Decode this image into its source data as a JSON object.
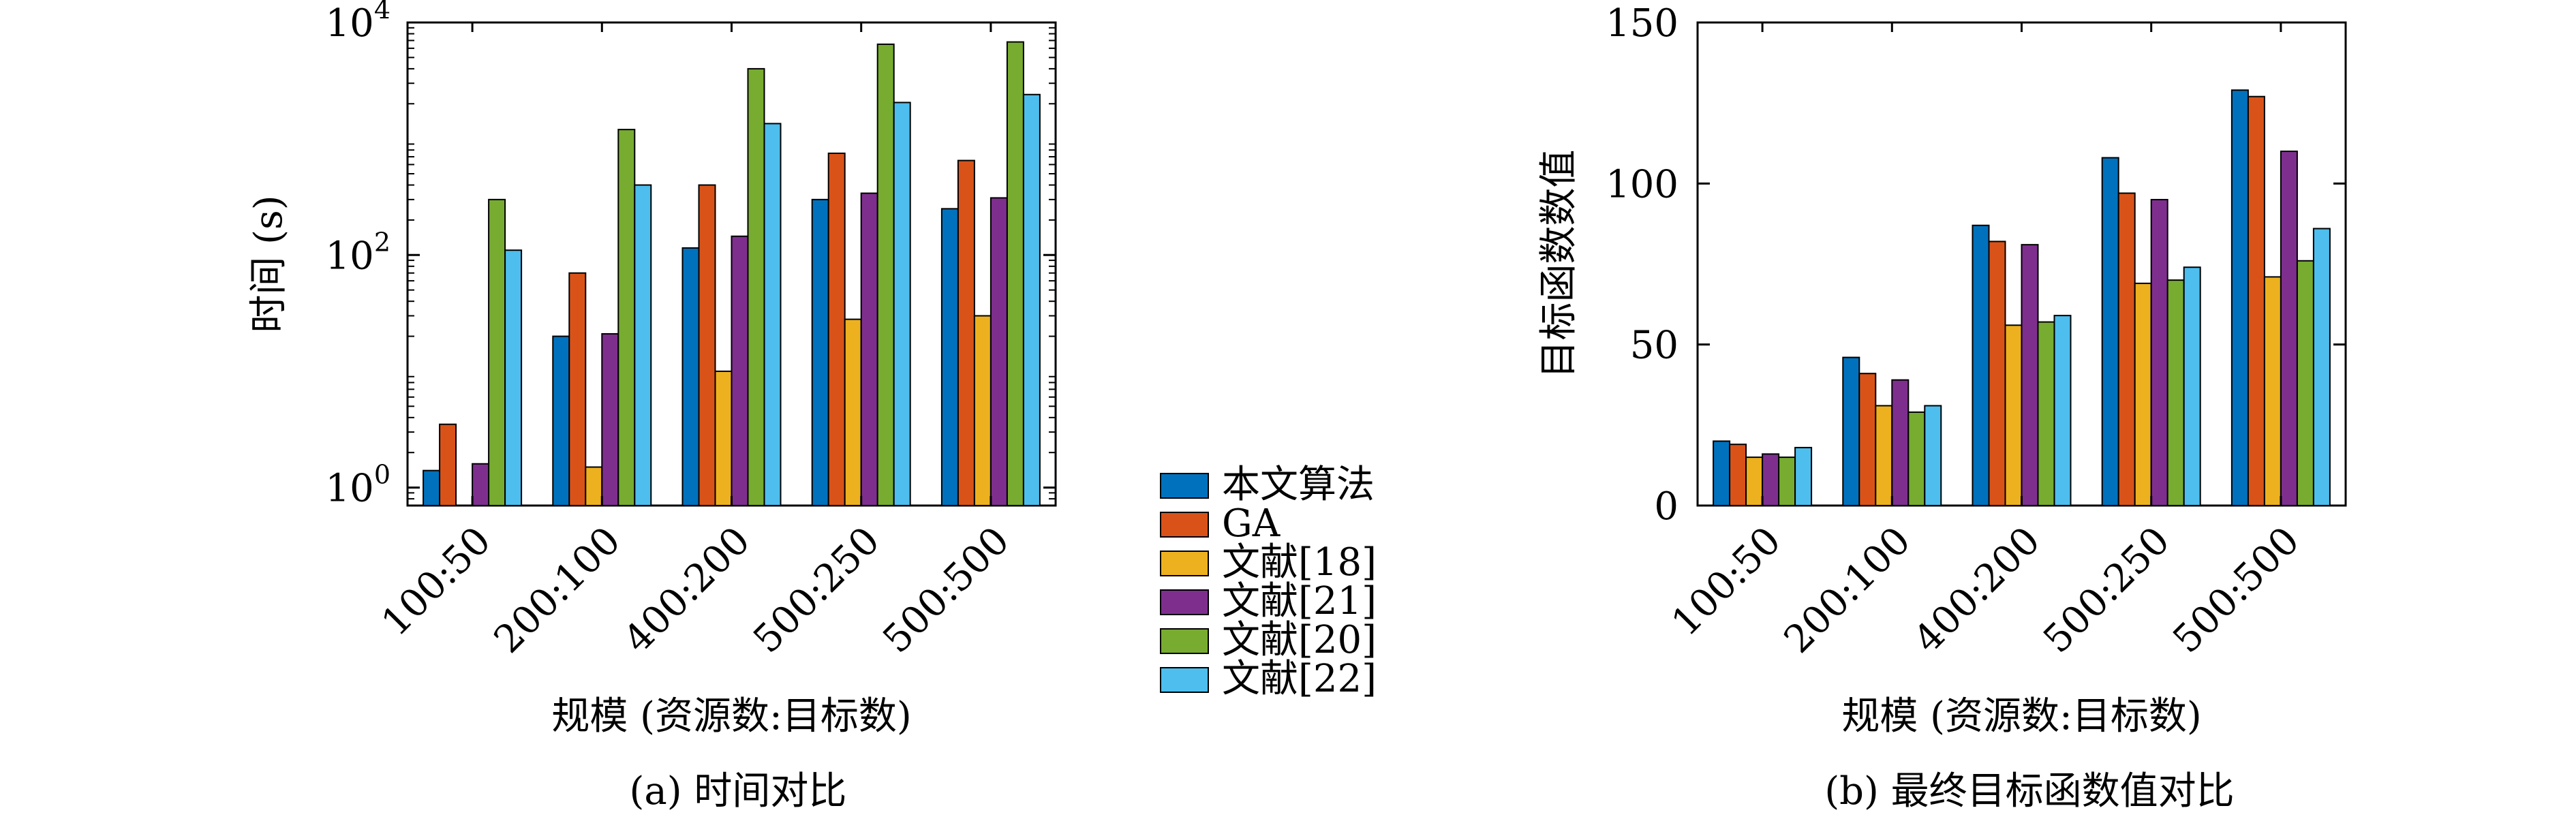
{
  "colors": {
    "series": [
      "#0072BD",
      "#D95319",
      "#EDB120",
      "#7E2F8E",
      "#77AC30",
      "#4DBEEE"
    ],
    "axis": "#000000",
    "bar_stroke": "#000000"
  },
  "legend": {
    "placement": "center, between panels",
    "entries": [
      "本文算法",
      "GA",
      "文献[18]",
      "文献[21]",
      "文献[20]",
      "文献[22]"
    ]
  },
  "chart_data": [
    {
      "type": "bar",
      "caption": "(a) 时间对比",
      "title": "",
      "xlabel": "规模 (资源数:目标数)",
      "ylabel": "时间 (s)",
      "yscale": "log",
      "ylim": [
        0.7,
        10000
      ],
      "yticks": [
        {
          "value": 1,
          "base": "10",
          "exp": "0"
        },
        {
          "value": 100,
          "base": "10",
          "exp": "2"
        },
        {
          "value": 10000,
          "base": "10",
          "exp": "4"
        }
      ],
      "categories": [
        "100:50",
        "200:100",
        "400:200",
        "500:250",
        "500:500"
      ],
      "grid": false,
      "series": [
        {
          "name": "本文算法",
          "values": [
            1.4,
            20,
            115,
            300,
            250
          ]
        },
        {
          "name": "GA",
          "values": [
            3.5,
            70,
            400,
            750,
            650
          ]
        },
        {
          "name": "文献[18]",
          "values": [
            null,
            1.5,
            10,
            28,
            30
          ]
        },
        {
          "name": "文献[21]",
          "values": [
            1.6,
            21,
            145,
            340,
            310
          ]
        },
        {
          "name": "文献[20]",
          "values": [
            300,
            1200,
            4000,
            6500,
            6800
          ]
        },
        {
          "name": "文献[22]",
          "values": [
            110,
            400,
            1350,
            2050,
            2400
          ]
        }
      ]
    },
    {
      "type": "bar",
      "caption": "(b) 最终目标函数值对比",
      "title": "",
      "xlabel": "规模 (资源数:目标数)",
      "ylabel": "目标函数数值",
      "yscale": "linear",
      "ylim": [
        0,
        150
      ],
      "yticks": [
        {
          "value": 0,
          "label": "0"
        },
        {
          "value": 50,
          "label": "50"
        },
        {
          "value": 100,
          "label": "100"
        },
        {
          "value": 150,
          "label": "150"
        }
      ],
      "categories": [
        "100:50",
        "200:100",
        "400:200",
        "500:250",
        "500:500"
      ],
      "grid": false,
      "series": [
        {
          "name": "本文算法",
          "values": [
            20,
            46,
            87,
            108,
            129
          ]
        },
        {
          "name": "GA",
          "values": [
            19,
            41,
            82,
            97,
            127
          ]
        },
        {
          "name": "文献[18]",
          "values": [
            15,
            31,
            56,
            69,
            71
          ]
        },
        {
          "name": "文献[21]",
          "values": [
            16,
            39,
            81,
            95,
            110
          ]
        },
        {
          "name": "文献[20]",
          "values": [
            15,
            29,
            57,
            70,
            76
          ]
        },
        {
          "name": "文献[22]",
          "values": [
            18,
            31,
            59,
            74,
            86
          ]
        }
      ]
    }
  ]
}
